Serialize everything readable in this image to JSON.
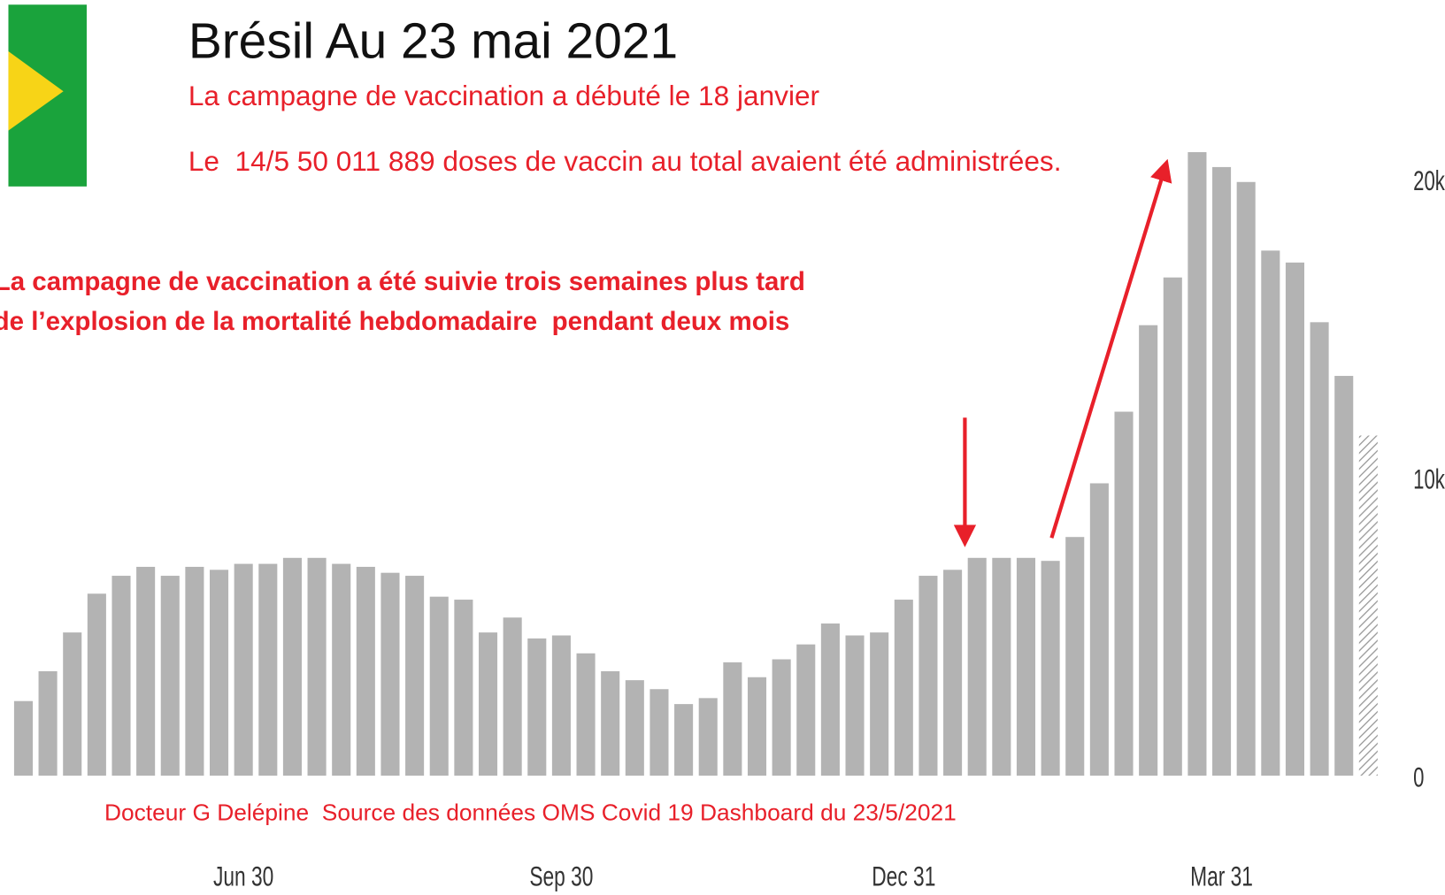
{
  "chart_data": {
    "type": "bar",
    "title": "Brésil Au 23 mai 2021",
    "subtitle": "La campagne de vaccination a débuté le 18 janvier",
    "note": "Le  14/5 50 011 889 doses de vaccin au total avaient été administrées.",
    "annotation": [
      "La campagne de vaccination a été suivie trois semaines plus tard",
      "de l’explosion de la mortalité hebdomadaire  pendant deux mois"
    ],
    "source": "Docteur G Delépine  Source des données OMS Covid 19 Dashboard du 23/5/2021",
    "categories": [
      null,
      null,
      null,
      null,
      null,
      null,
      null,
      null,
      null,
      "Jun 30",
      null,
      null,
      null,
      null,
      null,
      null,
      null,
      null,
      null,
      null,
      null,
      null,
      "Sep 30",
      null,
      null,
      null,
      null,
      null,
      null,
      null,
      null,
      null,
      null,
      null,
      null,
      null,
      "Dec 31",
      null,
      null,
      null,
      null,
      null,
      null,
      null,
      null,
      null,
      null,
      null,
      null,
      "Mar 31",
      null,
      null,
      null,
      null,
      null,
      null
    ],
    "values": [
      2500,
      3500,
      4800,
      6100,
      6700,
      7000,
      6700,
      7000,
      6900,
      7100,
      7100,
      7300,
      7300,
      7100,
      7000,
      6800,
      6700,
      6000,
      5900,
      4800,
      5300,
      4600,
      4700,
      4100,
      3500,
      3200,
      2900,
      2400,
      2600,
      3800,
      3300,
      3900,
      4400,
      5100,
      4700,
      4800,
      5900,
      6700,
      6900,
      7300,
      7300,
      7300,
      7200,
      8000,
      9800,
      12200,
      15100,
      16700,
      20900,
      20400,
      19900,
      17600,
      17200,
      15200,
      13400,
      11400
    ],
    "color": "#b3b3b3",
    "hatched_index": 55,
    "ylim": [
      0,
      21000
    ],
    "yticks": [
      0,
      {
        "value": 10000,
        "label": "10k"
      },
      {
        "value": 20000,
        "label": "20k"
      }
    ],
    "grid": false
  }
}
